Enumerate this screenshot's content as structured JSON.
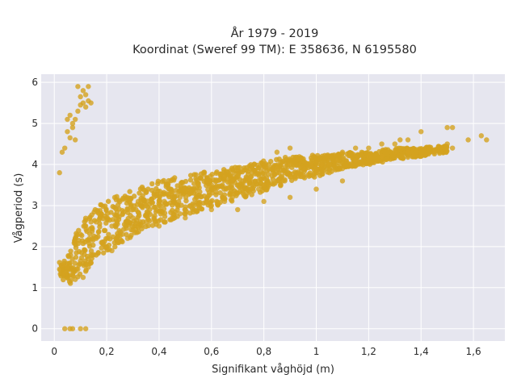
{
  "chart_data": {
    "type": "scatter",
    "title": "År 1979 - 2019",
    "subtitle": "Koordinat (Sweref 99 TM): E 358636, N 6195580",
    "xlabel": "Signifikant våghöjd (m)",
    "ylabel": "Vågperiod (s)",
    "xlim": [
      -0.05,
      1.72
    ],
    "ylim": [
      -0.3,
      6.2
    ],
    "x_ticks": [
      0,
      0.2,
      0.4,
      0.6,
      0.8,
      1,
      1.2,
      1.4,
      1.6
    ],
    "x_tick_labels": [
      "0",
      "0,2",
      "0,4",
      "0,6",
      "0,8",
      "1",
      "1,2",
      "1,4",
      "1,6"
    ],
    "y_ticks": [
      0,
      1,
      2,
      3,
      4,
      5,
      6
    ],
    "y_tick_labels": [
      "0",
      "1",
      "2",
      "3",
      "4",
      "5",
      "6"
    ],
    "grid": true,
    "legend": "none",
    "marker_color": "#d4a21f",
    "plot_background": "#e6e6ef",
    "series": [
      {
        "points": [
          [
            0.04,
            0.0
          ],
          [
            0.06,
            0.0
          ],
          [
            0.07,
            0.0
          ],
          [
            0.1,
            0.0
          ],
          [
            0.12,
            0.0
          ],
          [
            0.02,
            1.45
          ],
          [
            0.03,
            1.55
          ],
          [
            0.04,
            1.35
          ],
          [
            0.05,
            1.5
          ],
          [
            0.06,
            1.6
          ],
          [
            0.07,
            1.3
          ],
          [
            0.08,
            1.2
          ],
          [
            0.09,
            1.45
          ],
          [
            0.1,
            1.65
          ],
          [
            0.11,
            1.25
          ],
          [
            0.12,
            1.4
          ],
          [
            0.13,
            1.5
          ],
          [
            0.14,
            1.6
          ],
          [
            0.08,
            2.1
          ],
          [
            0.1,
            2.3
          ],
          [
            0.12,
            2.5
          ],
          [
            0.14,
            2.6
          ],
          [
            0.16,
            2.2
          ],
          [
            0.18,
            2.1
          ],
          [
            0.2,
            2.0
          ],
          [
            0.22,
            1.9
          ],
          [
            0.24,
            2.1
          ],
          [
            0.26,
            2.3
          ],
          [
            0.28,
            2.2
          ],
          [
            0.14,
            1.8
          ],
          [
            0.16,
            2.6
          ],
          [
            0.18,
            2.8
          ],
          [
            0.2,
            2.7
          ],
          [
            0.22,
            2.5
          ],
          [
            0.24,
            2.6
          ],
          [
            0.26,
            2.8
          ],
          [
            0.28,
            2.9
          ],
          [
            0.3,
            2.7
          ],
          [
            0.3,
            2.4
          ],
          [
            0.32,
            2.5
          ],
          [
            0.35,
            2.6
          ],
          [
            0.38,
            2.7
          ],
          [
            0.4,
            2.5
          ],
          [
            0.42,
            2.6
          ],
          [
            0.45,
            2.7
          ],
          [
            0.48,
            2.8
          ],
          [
            0.5,
            2.7
          ],
          [
            0.32,
            3.1
          ],
          [
            0.35,
            3.0
          ],
          [
            0.38,
            3.2
          ],
          [
            0.4,
            3.0
          ],
          [
            0.42,
            3.1
          ],
          [
            0.45,
            3.3
          ],
          [
            0.48,
            3.2
          ],
          [
            0.5,
            3.4
          ],
          [
            0.52,
            3.3
          ],
          [
            0.5,
            2.9
          ],
          [
            0.52,
            3.0
          ],
          [
            0.55,
            3.0
          ],
          [
            0.58,
            3.1
          ],
          [
            0.6,
            3.0
          ],
          [
            0.62,
            3.1
          ],
          [
            0.65,
            3.1
          ],
          [
            0.68,
            3.2
          ],
          [
            0.7,
            3.3
          ],
          [
            0.55,
            3.5
          ],
          [
            0.58,
            3.6
          ],
          [
            0.6,
            3.5
          ],
          [
            0.62,
            3.6
          ],
          [
            0.65,
            3.7
          ],
          [
            0.68,
            3.6
          ],
          [
            0.7,
            3.7
          ],
          [
            0.72,
            3.6
          ],
          [
            0.75,
            3.7
          ],
          [
            0.72,
            3.3
          ],
          [
            0.75,
            3.4
          ],
          [
            0.78,
            3.4
          ],
          [
            0.8,
            3.5
          ],
          [
            0.82,
            3.5
          ],
          [
            0.85,
            3.6
          ],
          [
            0.88,
            3.6
          ],
          [
            0.9,
            3.7
          ],
          [
            0.92,
            3.7
          ],
          [
            0.8,
            3.9
          ],
          [
            0.85,
            3.9
          ],
          [
            0.9,
            4.0
          ],
          [
            0.95,
            3.9
          ],
          [
            0.98,
            4.0
          ],
          [
            1.0,
            3.9
          ],
          [
            1.02,
            4.0
          ],
          [
            1.05,
            4.0
          ],
          [
            1.08,
            4.1
          ],
          [
            0.95,
            3.7
          ],
          [
            1.0,
            3.8
          ],
          [
            1.05,
            3.8
          ],
          [
            1.1,
            3.9
          ],
          [
            1.15,
            4.1
          ],
          [
            1.2,
            4.2
          ],
          [
            1.25,
            4.2
          ],
          [
            1.3,
            4.3
          ],
          [
            1.35,
            4.3
          ],
          [
            0.85,
            4.3
          ],
          [
            0.9,
            4.4
          ],
          [
            1.1,
            4.3
          ],
          [
            1.15,
            4.4
          ],
          [
            1.2,
            4.4
          ],
          [
            1.25,
            4.5
          ],
          [
            1.3,
            4.5
          ],
          [
            1.32,
            4.6
          ],
          [
            1.35,
            4.6
          ],
          [
            0.6,
            2.9
          ],
          [
            0.7,
            2.9
          ],
          [
            0.8,
            3.1
          ],
          [
            0.9,
            3.2
          ],
          [
            1.0,
            3.4
          ],
          [
            1.1,
            3.6
          ],
          [
            1.4,
            4.2
          ],
          [
            1.45,
            4.3
          ],
          [
            1.5,
            4.5
          ],
          [
            1.52,
            4.4
          ],
          [
            1.4,
            4.8
          ],
          [
            1.5,
            4.9
          ],
          [
            1.52,
            4.9
          ],
          [
            1.58,
            4.6
          ],
          [
            1.63,
            4.7
          ],
          [
            1.65,
            4.6
          ],
          [
            0.03,
            4.3
          ],
          [
            0.04,
            4.4
          ],
          [
            0.02,
            3.8
          ],
          [
            0.05,
            4.8
          ],
          [
            0.06,
            4.65
          ],
          [
            0.07,
            4.9
          ],
          [
            0.05,
            5.1
          ],
          [
            0.07,
            5.0
          ],
          [
            0.08,
            4.6
          ],
          [
            0.06,
            5.2
          ],
          [
            0.08,
            5.1
          ],
          [
            0.09,
            5.3
          ],
          [
            0.1,
            5.45
          ],
          [
            0.11,
            5.5
          ],
          [
            0.12,
            5.4
          ],
          [
            0.13,
            5.55
          ],
          [
            0.14,
            5.5
          ],
          [
            0.09,
            5.9
          ],
          [
            0.11,
            5.8
          ],
          [
            0.13,
            5.9
          ],
          [
            0.1,
            5.65
          ],
          [
            0.12,
            5.7
          ]
        ]
      }
    ],
    "bands": [
      [
        0.02,
        1.2,
        1.65
      ],
      [
        0.04,
        1.15,
        1.7
      ],
      [
        0.06,
        1.1,
        1.9
      ],
      [
        0.08,
        1.15,
        2.3
      ],
      [
        0.1,
        1.3,
        2.6
      ],
      [
        0.12,
        1.4,
        2.7
      ],
      [
        0.14,
        1.6,
        2.85
      ],
      [
        0.16,
        1.7,
        2.95
      ],
      [
        0.18,
        1.8,
        3.05
      ],
      [
        0.2,
        1.85,
        3.15
      ],
      [
        0.25,
        2.05,
        3.3
      ],
      [
        0.3,
        2.25,
        3.4
      ],
      [
        0.35,
        2.45,
        3.5
      ],
      [
        0.4,
        2.55,
        3.6
      ],
      [
        0.45,
        2.65,
        3.7
      ],
      [
        0.5,
        2.75,
        3.75
      ],
      [
        0.55,
        2.85,
        3.8
      ],
      [
        0.6,
        2.95,
        3.85
      ],
      [
        0.65,
        3.05,
        3.9
      ],
      [
        0.7,
        3.15,
        3.95
      ],
      [
        0.75,
        3.25,
        4.0
      ],
      [
        0.8,
        3.35,
        4.1
      ],
      [
        0.85,
        3.45,
        4.15
      ],
      [
        0.9,
        3.55,
        4.2
      ],
      [
        0.95,
        3.65,
        4.2
      ],
      [
        1.0,
        3.7,
        4.25
      ],
      [
        1.05,
        3.8,
        4.25
      ],
      [
        1.1,
        3.9,
        4.3
      ],
      [
        1.15,
        3.95,
        4.3
      ],
      [
        1.2,
        4.0,
        4.3
      ],
      [
        1.25,
        4.05,
        4.35
      ],
      [
        1.3,
        4.1,
        4.4
      ],
      [
        1.35,
        4.15,
        4.4
      ],
      [
        1.4,
        4.2,
        4.4
      ],
      [
        1.45,
        4.25,
        4.45
      ],
      [
        1.5,
        4.3,
        4.45
      ]
    ]
  }
}
